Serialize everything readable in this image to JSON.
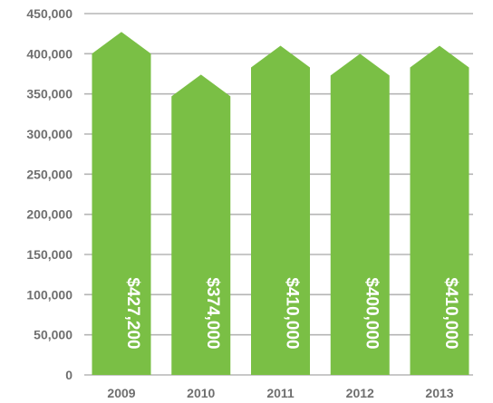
{
  "chart_data": {
    "type": "bar",
    "title": "",
    "xlabel": "",
    "ylabel": "",
    "categories": [
      "2009",
      "2010",
      "2011",
      "2012",
      "2013"
    ],
    "values": [
      427200,
      374000,
      410000,
      400000,
      410000
    ],
    "data_labels": [
      "$427,200",
      "$374,000",
      "$410,000",
      "$400,000",
      "$410,000"
    ],
    "ylim": [
      0,
      450000
    ],
    "yticks": [
      0,
      50000,
      100000,
      150000,
      200000,
      250000,
      300000,
      350000,
      400000,
      450000
    ],
    "ytick_labels": [
      "0",
      "50,000",
      "100,000",
      "150,000",
      "200,000",
      "250,000",
      "300,000",
      "350,000",
      "400,000",
      "450,000"
    ],
    "bar_style": "arrow-up",
    "data_label_orientation": "vertical",
    "grid": true,
    "legend": "none",
    "colors": {
      "bar": "#7abf45",
      "grid": "#b5b5b5",
      "tick_text": "#6f6f6f",
      "data_label_text": "#ffffff"
    }
  }
}
